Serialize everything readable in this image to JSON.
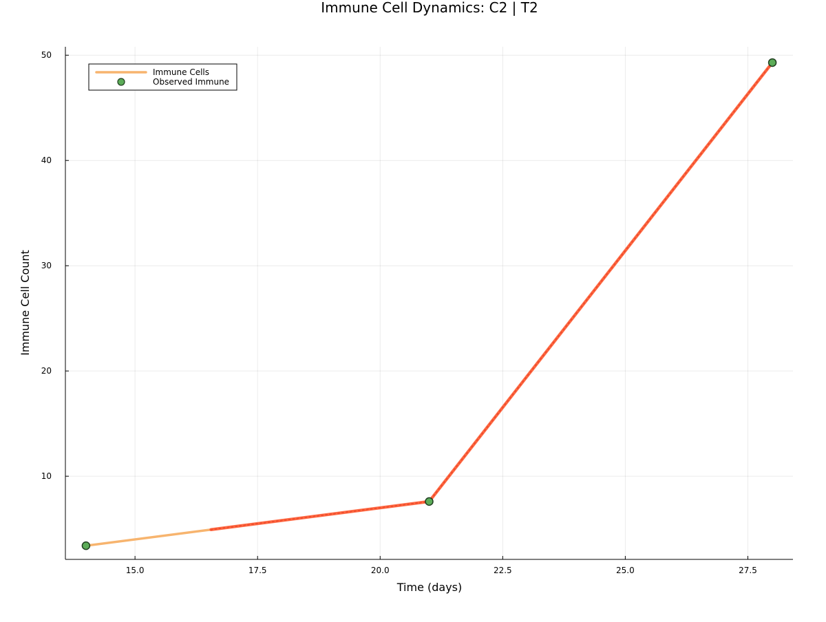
{
  "chart_data": {
    "type": "line",
    "title": "Immune Cell Dynamics: C2 | T2",
    "xlabel": "Time (days)",
    "ylabel": "Immune Cell Count",
    "xlim": [
      13.58,
      28.42
    ],
    "ylim": [
      2.1,
      50.8
    ],
    "xticks": [
      15.0,
      17.5,
      20.0,
      22.5,
      25.0,
      27.5
    ],
    "xtick_labels": [
      "15.0",
      "17.5",
      "20.0",
      "22.5",
      "25.0",
      "27.5"
    ],
    "yticks": [
      10,
      20,
      30,
      40,
      50
    ],
    "ytick_labels": [
      "10",
      "20",
      "30",
      "40",
      "50"
    ],
    "grid": true,
    "legend_position": "top-left",
    "series": [
      {
        "name": "Immune Cells",
        "kind": "line",
        "color": "#f7b46e",
        "x": [
          14.0,
          21.0,
          28.0
        ],
        "y": [
          3.4,
          7.6,
          49.3
        ]
      },
      {
        "name": "",
        "kind": "line-highlight",
        "color": "#ff5a36",
        "x": [
          16.55,
          21.0,
          28.0
        ],
        "y": [
          4.93,
          7.6,
          49.3
        ]
      },
      {
        "name": "Observed Immune",
        "kind": "scatter",
        "color": "#5cac58",
        "x": [
          14.0,
          21.0,
          28.0
        ],
        "y": [
          3.4,
          7.6,
          49.3
        ]
      }
    ]
  }
}
